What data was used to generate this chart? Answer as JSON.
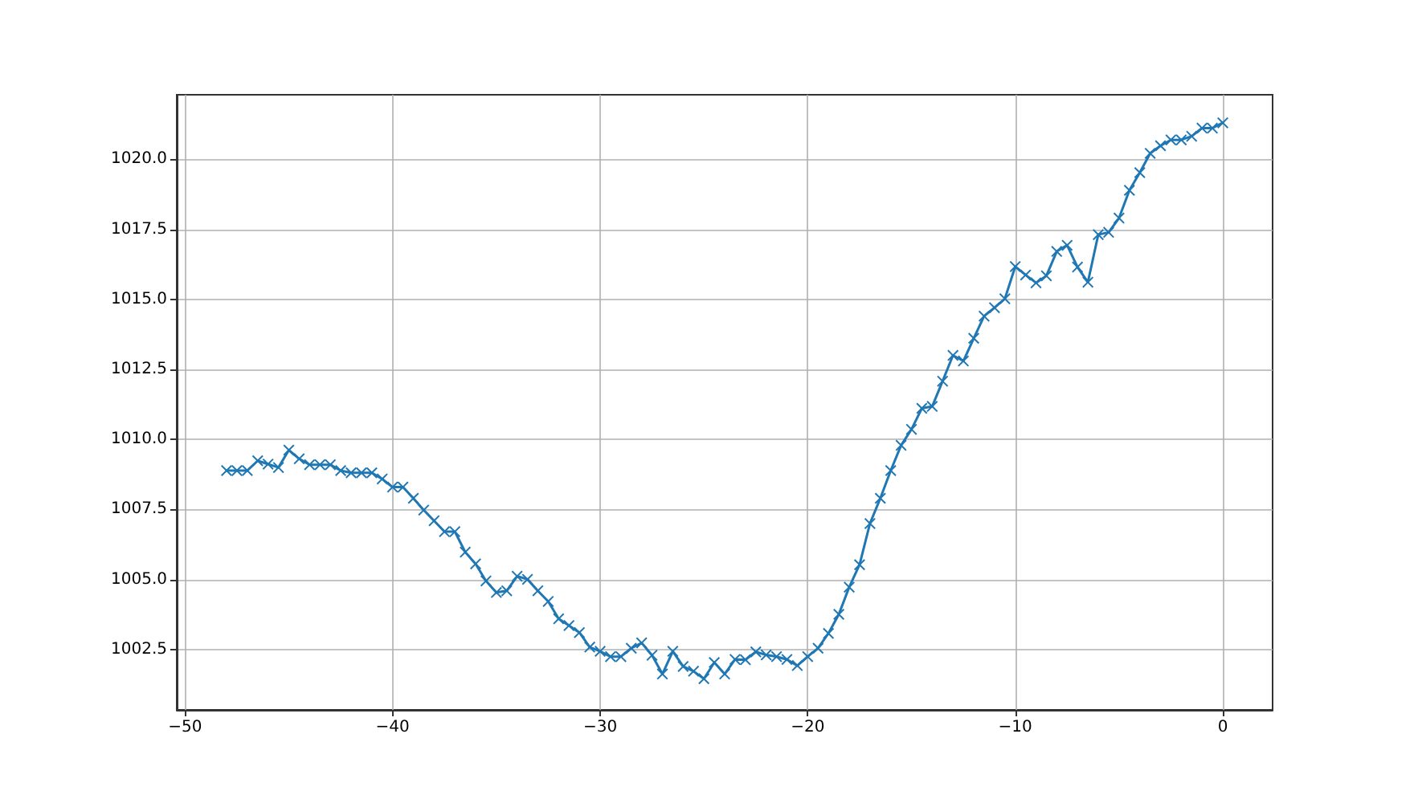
{
  "chart_data": {
    "type": "line",
    "color": "#1f77b4",
    "marker": "cross",
    "line_style": "solid",
    "grid": true,
    "x": [
      -48,
      -47.5,
      -47,
      -46.5,
      -46,
      -45.5,
      -45,
      -44.5,
      -44,
      -43.5,
      -43,
      -42.5,
      -42,
      -41.5,
      -41,
      -40.5,
      -40,
      -39.5,
      -39,
      -38.5,
      -38,
      -37.5,
      -37,
      -36.5,
      -36,
      -35.5,
      -35,
      -34.5,
      -34,
      -33.5,
      -33,
      -32.5,
      -32,
      -31.5,
      -31,
      -30.5,
      -30,
      -29.5,
      -29,
      -28.5,
      -28,
      -27.5,
      -27,
      -26.5,
      -26,
      -25.5,
      -25,
      -24.5,
      -24,
      -23.5,
      -23,
      -22.5,
      -22,
      -21.5,
      -21,
      -20.5,
      -20,
      -19.5,
      -19,
      -18.5,
      -18,
      -17.5,
      -17,
      -16.5,
      -16,
      -15.5,
      -15,
      -14.5,
      -14,
      -13.5,
      -13,
      -12.5,
      -12,
      -11.5,
      -11,
      -10.5,
      -10,
      -9.5,
      -9,
      -8.5,
      -8,
      -7.5,
      -7,
      -6.5,
      -6,
      -5.5,
      -5,
      -4.5,
      -4,
      -3.5,
      -3,
      -2.5,
      -2,
      -1.5,
      -1,
      -0.5,
      0
    ],
    "values": [
      1008.89,
      1008.89,
      1008.89,
      1009.24,
      1009.12,
      1009.0,
      1009.62,
      1009.31,
      1009.1,
      1009.1,
      1009.1,
      1008.89,
      1008.81,
      1008.81,
      1008.81,
      1008.59,
      1008.3,
      1008.3,
      1007.9,
      1007.48,
      1007.1,
      1006.71,
      1006.71,
      1005.98,
      1005.56,
      1004.95,
      1004.54,
      1004.6,
      1005.12,
      1005.01,
      1004.6,
      1004.22,
      1003.6,
      1003.36,
      1003.11,
      1002.59,
      1002.44,
      1002.25,
      1002.25,
      1002.55,
      1002.74,
      1002.3,
      1001.63,
      1002.44,
      1001.9,
      1001.73,
      1001.46,
      1002.04,
      1001.63,
      1002.15,
      1002.14,
      1002.42,
      1002.31,
      1002.25,
      1002.15,
      1001.93,
      1002.25,
      1002.55,
      1003.08,
      1003.76,
      1004.73,
      1005.53,
      1007.0,
      1007.9,
      1008.89,
      1009.79,
      1010.36,
      1011.11,
      1011.18,
      1012.08,
      1013.0,
      1012.8,
      1013.61,
      1014.4,
      1014.7,
      1015.02,
      1016.17,
      1015.87,
      1015.59,
      1015.84,
      1016.71,
      1016.93,
      1016.15,
      1015.61,
      1017.31,
      1017.39,
      1017.9,
      1018.89,
      1019.52,
      1020.21,
      1020.48,
      1020.69,
      1020.69,
      1020.82,
      1021.11,
      1021.11,
      1021.3
    ],
    "xlim": [
      -50.4,
      2.4
    ],
    "ylim": [
      1000.35,
      1022.3
    ],
    "xticks": [
      {
        "value": -50,
        "label": "−50"
      },
      {
        "value": -40,
        "label": "−40"
      },
      {
        "value": -30,
        "label": "−30"
      },
      {
        "value": -20,
        "label": "−20"
      },
      {
        "value": -10,
        "label": "−10"
      },
      0
    ],
    "yticks": [
      1002.5,
      {
        "value": 1005,
        "label": "1005.0"
      },
      1007.5,
      {
        "value": 1010,
        "label": "1010.0"
      },
      1012.5,
      {
        "value": 1015,
        "label": "1015.0"
      },
      1017.5,
      {
        "value": 1020,
        "label": "1020.0"
      }
    ]
  }
}
